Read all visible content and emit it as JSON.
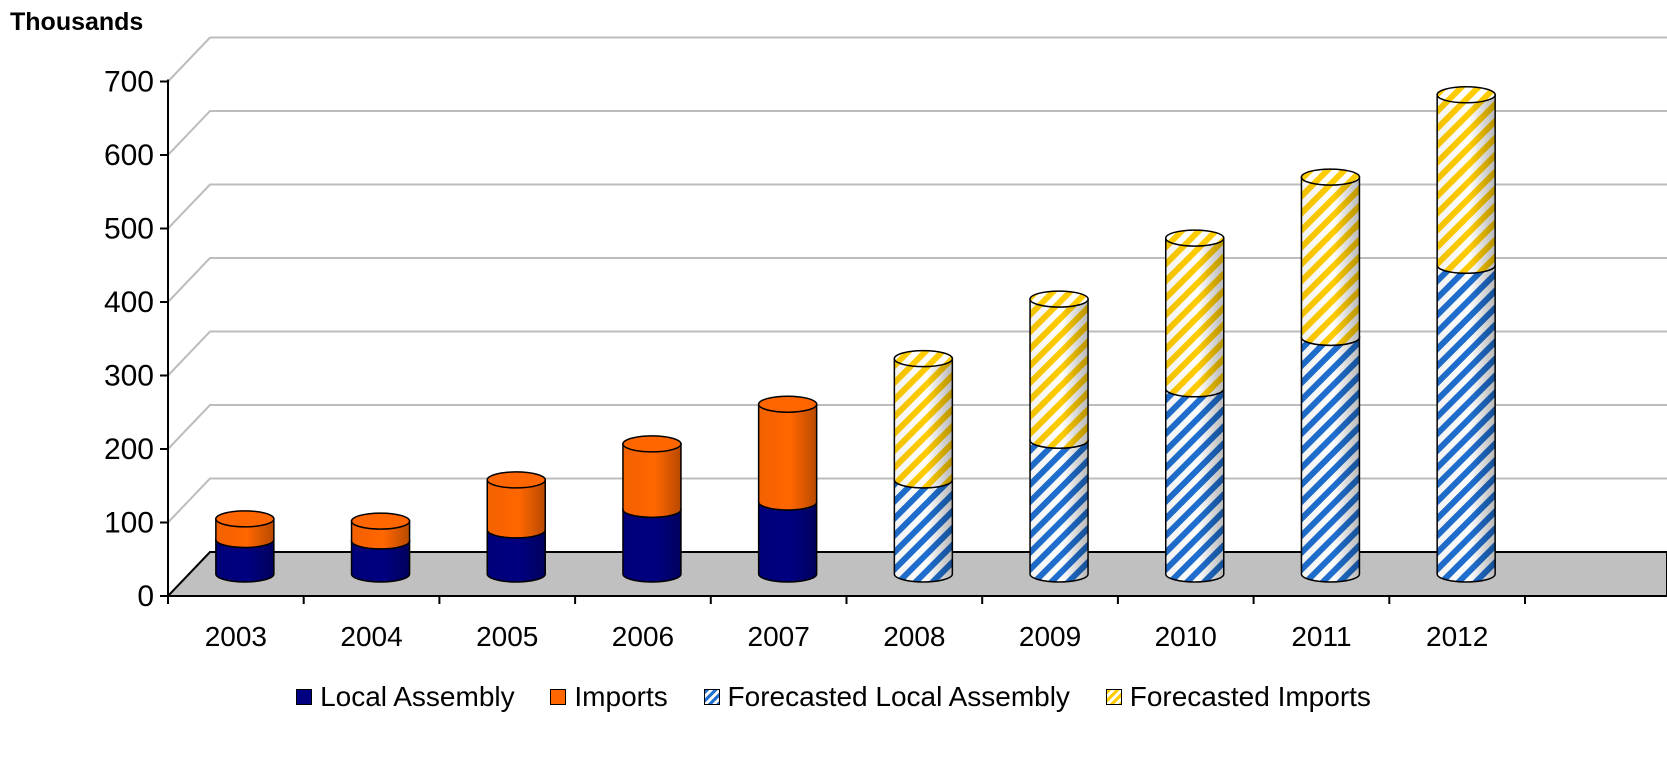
{
  "chart_data": {
    "type": "bar",
    "stacked": true,
    "style": "3d-cylinder",
    "unit_label": "Thousands",
    "categories": [
      "2003",
      "2004",
      "2005",
      "2006",
      "2007",
      "2008",
      "2009",
      "2010",
      "2011",
      "2012"
    ],
    "series": [
      {
        "name": "Local Assembly",
        "color": "#000080",
        "pattern": "solid",
        "values": [
          47,
          45,
          60,
          88,
          98,
          null,
          null,
          null,
          null,
          null
        ]
      },
      {
        "name": "Imports",
        "color": "#FF6600",
        "pattern": "solid",
        "values": [
          28,
          27,
          68,
          89,
          133,
          null,
          null,
          null,
          null,
          null
        ]
      },
      {
        "name": "Forecasted Local Assembly",
        "color": "#1F6FD0",
        "pattern": "diagonal-stripes",
        "values": [
          null,
          null,
          null,
          null,
          null,
          128,
          182,
          252,
          322,
          420
        ]
      },
      {
        "name": "Forecasted Imports",
        "color": "#FFCC00",
        "pattern": "diagonal-stripes",
        "values": [
          null,
          null,
          null,
          null,
          null,
          165,
          192,
          205,
          218,
          232
        ]
      }
    ],
    "ylim": [
      0,
      700
    ],
    "yticks": [
      0,
      100,
      200,
      300,
      400,
      500,
      600,
      700
    ],
    "grid": true,
    "legend_position": "bottom"
  }
}
